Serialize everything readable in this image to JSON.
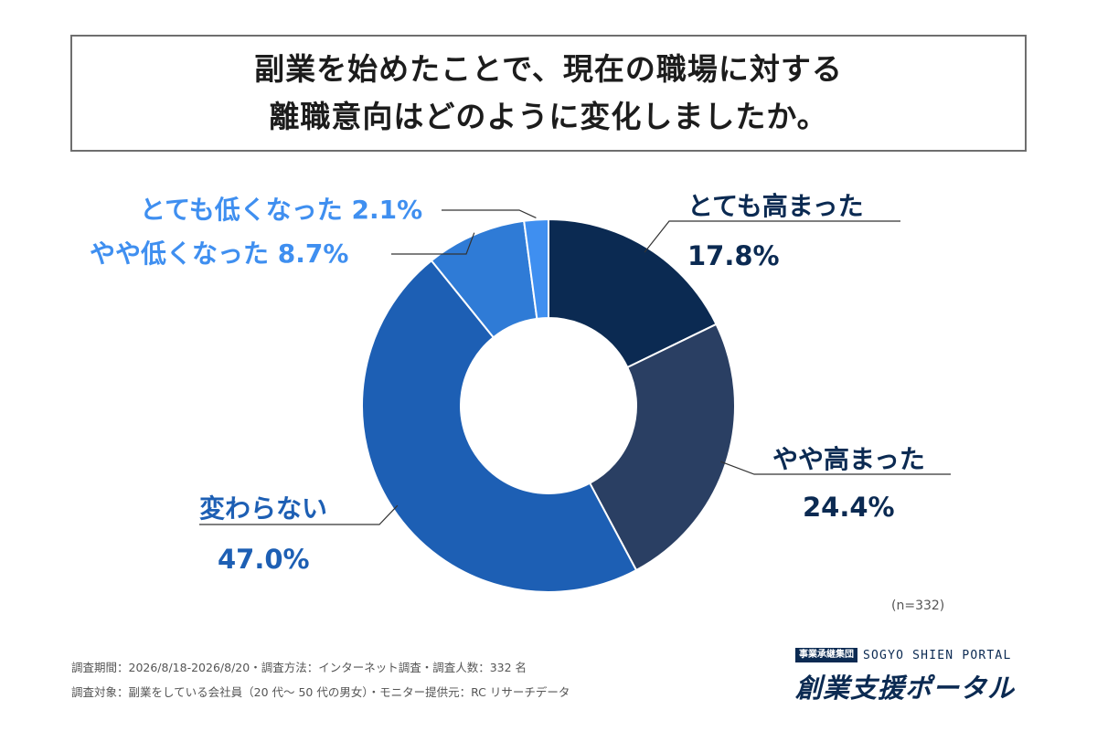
{
  "title": {
    "line1": "副業を始めたことで、現在の職場に対する",
    "line2": "離職意向はどのように変化しましたか。"
  },
  "chart_data": {
    "type": "pie",
    "style": "donut",
    "slices": [
      {
        "label": "とても高まった",
        "value": 17.8,
        "display": "17.8%",
        "color": "#0b2a52"
      },
      {
        "label": "やや高まった",
        "value": 24.4,
        "display": "24.4%",
        "color": "#2a3f63"
      },
      {
        "label": "変わらない",
        "value": 47.0,
        "display": "47.0%",
        "color": "#1d5fb4"
      },
      {
        "label": "やや低くなった",
        "value": 8.7,
        "display": "8.7%",
        "color": "#2f7bd6"
      },
      {
        "label": "とても低くなった",
        "value": 2.1,
        "display": "2.1%",
        "color": "#3f8ff0"
      }
    ],
    "start": "12 o'clock, clockwise"
  },
  "sample_size": "(n=332)",
  "footer": {
    "line1": "調査期間：2026/8/18-2026/8/20・調査方法：インターネット調査・調査人数：332 名",
    "line2": "調査対象：副業をしている会社員（20 代〜 50 代の男女）・モニター提供元：RC リサーチデータ"
  },
  "logo": {
    "badge": "事業承継集団",
    "english": "SOGYO SHIEN PORTAL",
    "japanese": "創業支援ポータル"
  }
}
